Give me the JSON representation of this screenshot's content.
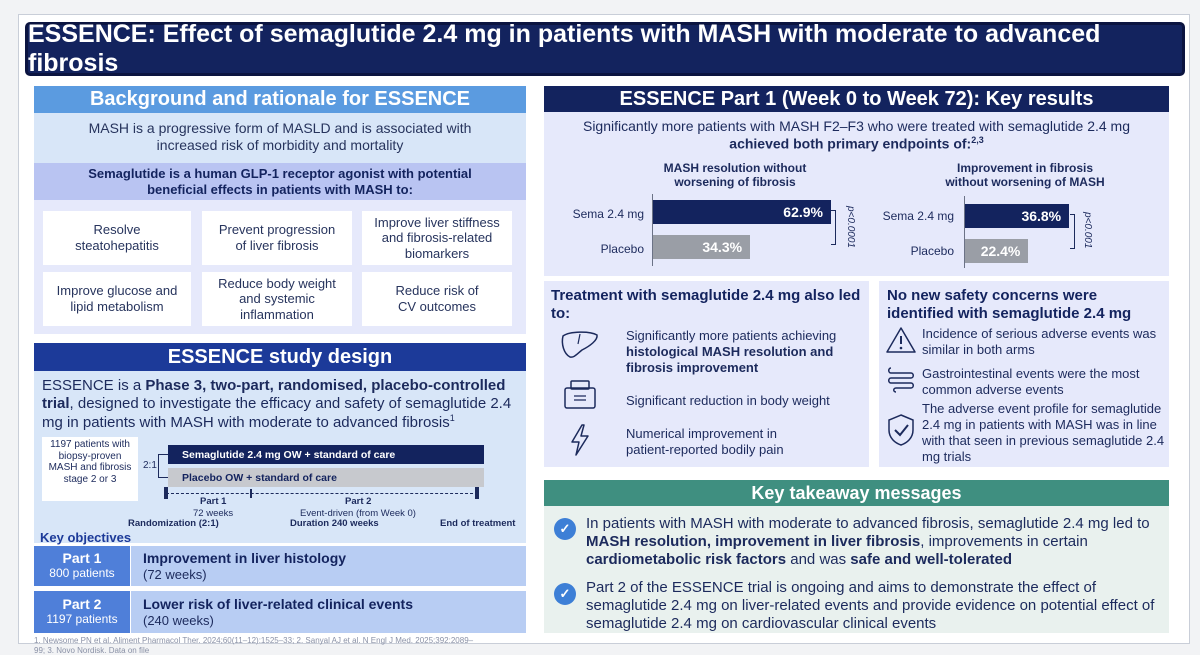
{
  "title": "ESSENCE: Effect of semaglutide 2.4 mg in patients with MASH with moderate to advanced fibrosis",
  "background": {
    "header": "Background and rationale for ESSENCE",
    "intro": "MASH is a progressive form of MASLD and is associated with increased risk of morbidity and mortality",
    "agonist_line1": "Semaglutide is a human GLP-1 receptor agonist with potential",
    "agonist_line2": "beneficial effects in patients with MASH to:",
    "benefits": [
      "Resolve steatohepatitis",
      "Prevent progression of liver fibrosis",
      "Improve liver stiffness and fibrosis-related biomarkers",
      "Improve glucose and lipid metabolism",
      "Reduce body weight and systemic inflammation",
      "Reduce risk of CV outcomes"
    ]
  },
  "design": {
    "header": "ESSENCE study design",
    "desc_a": "ESSENCE is a ",
    "desc_b": "Phase 3, two-part, randomised, placebo-controlled trial",
    "desc_c": ", designed to investigate the efficacy and safety of semaglutide 2.4 mg in patients with MASH with moderate to advanced fibrosis",
    "desc_sup": "1",
    "patients_box": "1197 patients with biopsy-proven MASH and fibrosis stage 2 or 3",
    "ratio": "2:1",
    "arm1": "Semaglutide 2.4 mg OW + standard of care",
    "arm2": "Placebo OW + standard of care",
    "part1_label": "Part 1",
    "part1_dur": "72 weeks",
    "part2_label": "Part 2",
    "part2_dur": "Event-driven (from Week 0)",
    "duration": "Duration 240 weeks",
    "randomization": "Randomization (2:1)",
    "end": "End of treatment",
    "objectives_header": "Key objectives",
    "objectives": [
      {
        "part": "Part 1",
        "patients": "800 patients",
        "title": "Improvement in liver histology",
        "sub": "(72 weeks)"
      },
      {
        "part": "Part 2",
        "patients": "1197 patients",
        "title": "Lower risk of liver-related clinical events",
        "sub": "(240 weeks)"
      }
    ]
  },
  "results": {
    "header": "ESSENCE Part 1 (Week 0 to Week 72): Key results",
    "intro_line1": "Significantly more patients with MASH F2–F3 who were treated with semaglutide 2.4 mg",
    "intro_line2": "achieved both primary endpoints of:",
    "intro_sup": "2,3"
  },
  "chart_data": [
    {
      "type": "bar",
      "title": "MASH resolution without worsening of fibrosis",
      "categories": [
        "Sema 2.4 mg",
        "Placebo"
      ],
      "values": [
        62.9,
        34.3
      ],
      "value_labels": [
        "62.9%",
        "34.3%"
      ],
      "p_value": "p<0.0001",
      "orientation": "horizontal",
      "colors": [
        "#13235e",
        "#9a9ea6"
      ]
    },
    {
      "type": "bar",
      "title": "Improvement in fibrosis without worsening of MASH",
      "categories": [
        "Sema 2.4 mg",
        "Placebo"
      ],
      "values": [
        36.8,
        22.4
      ],
      "value_labels": [
        "36.8%",
        "22.4%"
      ],
      "p_value": "p<0.001",
      "orientation": "horizontal",
      "colors": [
        "#13235e",
        "#9a9ea6"
      ]
    }
  ],
  "also": {
    "header": "Treatment with semaglutide 2.4 mg also led to:",
    "item1_a": "Significantly more patients achieving ",
    "item1_b": "histological MASH resolution and fibrosis improvement",
    "item2": "Significant reduction in body weight",
    "item3": "Numerical improvement in patient-reported bodily pain",
    "icons": [
      "liver-icon",
      "scale-icon",
      "lightning-icon"
    ]
  },
  "safety": {
    "header": "No new safety concerns were identified with semaglutide 2.4 mg",
    "item1": "Incidence of serious adverse events was similar in both arms",
    "item2": "Gastrointestinal events were the most common adverse events",
    "item3": "The adverse event profile for semaglutide 2.4 mg in patients with MASH was in line with that seen in previous semaglutide 2.4 mg trials",
    "icons": [
      "warning-icon",
      "intestine-icon",
      "shield-check-icon"
    ]
  },
  "takeaway": {
    "header": "Key takeaway messages",
    "msg1_a": "In patients with MASH with moderate to advanced fibrosis, semaglutide 2.4 mg led to ",
    "msg1_b": "MASH resolution, improvement in liver fibrosis",
    "msg1_c": ", improvements in certain ",
    "msg1_d": "cardiometabolic risk factors",
    "msg1_e": " and was ",
    "msg1_f": "safe and well-tolerated",
    "msg2": "Part 2 of the ESSENCE trial is ongoing and aims to demonstrate the effect of semaglutide 2.4 mg on liver-related events and provide evidence on potential effect of semaglutide 2.4 mg on cardiovascular clinical events"
  },
  "footnote": "1. Newsome PN et al. Aliment Pharmacol Ther. 2024;60(11–12):1525–33; 2. Sanyal AJ et al. N Engl J Med. 2025;392:2089–99; 3. Novo Nordisk. Data on file",
  "colors": {
    "navy": "#13235e",
    "blue": "#1c3a99",
    "light_blue": "#5b9be0",
    "teal": "#3f8f80",
    "grey_bar": "#9a9ea6"
  }
}
